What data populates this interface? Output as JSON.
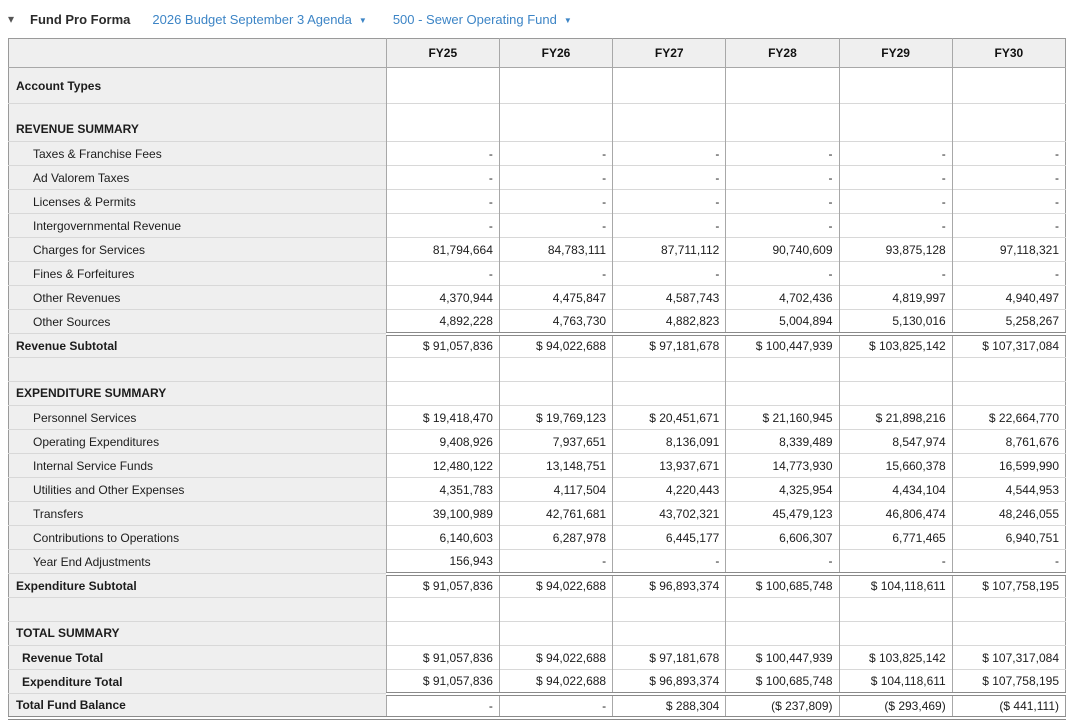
{
  "toolbar": {
    "collapse_icon": "▾",
    "title": "Fund Pro Forma",
    "budget_dropdown": "2026 Budget September 3 Agenda",
    "fund_dropdown": "500 - Sewer Operating Fund",
    "dropdown_caret": "▼"
  },
  "colors": {
    "link_blue": "#3d85c6",
    "header_bg": "#efefef",
    "double_rule": "#8a8a8a"
  },
  "table": {
    "columns": [
      "FY25",
      "FY26",
      "FY27",
      "FY28",
      "FY29",
      "FY30"
    ],
    "rows": [
      {
        "type": "label",
        "label": "Account Types",
        "values": [
          "",
          "",
          "",
          "",
          "",
          ""
        ]
      },
      {
        "type": "section",
        "label": "REVENUE SUMMARY",
        "values": [
          "",
          "",
          "",
          "",
          "",
          ""
        ]
      },
      {
        "type": "detail",
        "label": "Taxes & Franchise Fees",
        "values": [
          "-",
          "-",
          "-",
          "-",
          "-",
          "-"
        ]
      },
      {
        "type": "detail",
        "label": "Ad Valorem Taxes",
        "values": [
          "-",
          "-",
          "-",
          "-",
          "-",
          "-"
        ]
      },
      {
        "type": "detail",
        "label": "Licenses & Permits",
        "values": [
          "-",
          "-",
          "-",
          "-",
          "-",
          "-"
        ]
      },
      {
        "type": "detail",
        "label": "Intergovernmental Revenue",
        "values": [
          "-",
          "-",
          "-",
          "-",
          "-",
          "-"
        ]
      },
      {
        "type": "detail",
        "label": "Charges for Services",
        "values": [
          "81,794,664",
          "84,783,111",
          "87,711,112",
          "90,740,609",
          "93,875,128",
          "97,118,321"
        ]
      },
      {
        "type": "detail",
        "label": "Fines & Forfeitures",
        "values": [
          "-",
          "-",
          "-",
          "-",
          "-",
          "-"
        ]
      },
      {
        "type": "detail",
        "label": "Other Revenues",
        "values": [
          "4,370,944",
          "4,475,847",
          "4,587,743",
          "4,702,436",
          "4,819,997",
          "4,940,497"
        ]
      },
      {
        "type": "detail",
        "label": "Other Sources",
        "values": [
          "4,892,228",
          "4,763,730",
          "4,882,823",
          "5,004,894",
          "5,130,016",
          "5,258,267"
        ]
      },
      {
        "type": "subtotal",
        "label": "Revenue Subtotal",
        "values": [
          "$ 91,057,836",
          "$ 94,022,688",
          "$ 97,181,678",
          "$ 100,447,939",
          "$ 103,825,142",
          "$ 107,317,084"
        ]
      },
      {
        "type": "spacer",
        "label": "",
        "values": [
          "",
          "",
          "",
          "",
          "",
          ""
        ]
      },
      {
        "type": "section2",
        "label": "EXPENDITURE SUMMARY",
        "values": [
          "",
          "",
          "",
          "",
          "",
          ""
        ]
      },
      {
        "type": "detail",
        "label": "Personnel Services",
        "values": [
          "$ 19,418,470",
          "$ 19,769,123",
          "$ 20,451,671",
          "$ 21,160,945",
          "$ 21,898,216",
          "$ 22,664,770"
        ]
      },
      {
        "type": "detail",
        "label": "Operating Expenditures",
        "values": [
          "9,408,926",
          "7,937,651",
          "8,136,091",
          "8,339,489",
          "8,547,974",
          "8,761,676"
        ]
      },
      {
        "type": "detail",
        "label": "Internal Service Funds",
        "values": [
          "12,480,122",
          "13,148,751",
          "13,937,671",
          "14,773,930",
          "15,660,378",
          "16,599,990"
        ]
      },
      {
        "type": "detail",
        "label": "Utilities and Other Expenses",
        "values": [
          "4,351,783",
          "4,117,504",
          "4,220,443",
          "4,325,954",
          "4,434,104",
          "4,544,953"
        ]
      },
      {
        "type": "detail",
        "label": "Transfers",
        "values": [
          "39,100,989",
          "42,761,681",
          "43,702,321",
          "45,479,123",
          "46,806,474",
          "48,246,055"
        ]
      },
      {
        "type": "detail",
        "label": "Contributions to Operations",
        "values": [
          "6,140,603",
          "6,287,978",
          "6,445,177",
          "6,606,307",
          "6,771,465",
          "6,940,751"
        ]
      },
      {
        "type": "detail",
        "label": "Year End Adjustments",
        "values": [
          "156,943",
          "-",
          "-",
          "-",
          "-",
          "-"
        ]
      },
      {
        "type": "subtotal",
        "label": "Expenditure Subtotal",
        "values": [
          "$ 91,057,836",
          "$ 94,022,688",
          "$ 96,893,374",
          "$ 100,685,748",
          "$ 104,118,611",
          "$ 107,758,195"
        ]
      },
      {
        "type": "spacer",
        "label": "",
        "values": [
          "",
          "",
          "",
          "",
          "",
          ""
        ]
      },
      {
        "type": "section2",
        "label": "TOTAL SUMMARY",
        "values": [
          "",
          "",
          "",
          "",
          "",
          ""
        ]
      },
      {
        "type": "total",
        "label": "Revenue Total",
        "values": [
          "$ 91,057,836",
          "$ 94,022,688",
          "$ 97,181,678",
          "$ 100,447,939",
          "$ 103,825,142",
          "$ 107,317,084"
        ]
      },
      {
        "type": "total",
        "label": "Expenditure Total",
        "values": [
          "$ 91,057,836",
          "$ 94,022,688",
          "$ 96,893,374",
          "$ 100,685,748",
          "$ 104,118,611",
          "$ 107,758,195"
        ]
      },
      {
        "type": "grand",
        "label": "Total Fund Balance",
        "values": [
          "-",
          "-",
          "$ 288,304",
          "($ 237,809)",
          "($ 293,469)",
          "($ 441,111)"
        ]
      }
    ]
  }
}
